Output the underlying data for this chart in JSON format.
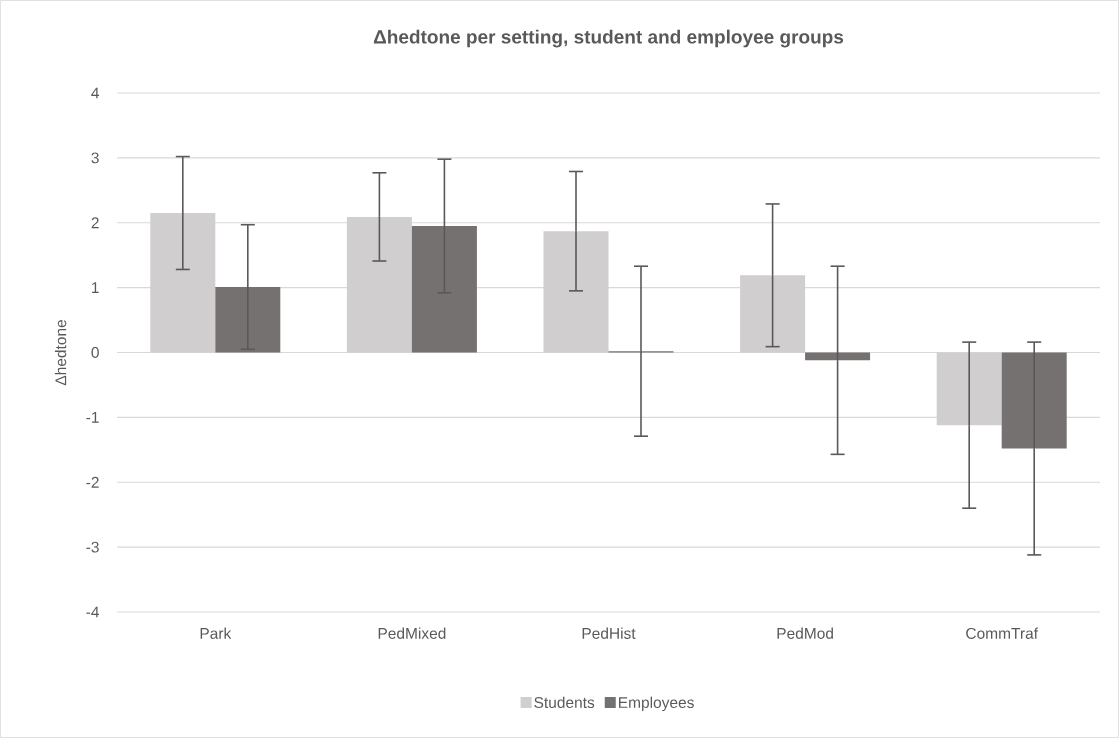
{
  "chart_data": {
    "type": "bar",
    "title": "Δhedtone per setting, student and employee groups",
    "ylabel": "Δhedtone",
    "categories": [
      "Park",
      "PedMixed",
      "PedHist",
      "PedMod",
      "CommTraf"
    ],
    "series": [
      {
        "name": "Students",
        "color": "#d0cece",
        "values": [
          2.15,
          2.09,
          1.87,
          1.19,
          -1.12
        ],
        "errors": [
          0.87,
          0.68,
          0.92,
          1.1,
          1.28
        ]
      },
      {
        "name": "Employees",
        "color": "#767171",
        "values": [
          1.01,
          1.95,
          0.02,
          -0.12,
          -1.48
        ],
        "errors": [
          0.96,
          1.03,
          1.31,
          1.45,
          1.64
        ]
      }
    ],
    "ylim": [
      -4,
      4
    ],
    "yticks": [
      -4,
      -3,
      -2,
      -1,
      0,
      1,
      2,
      3,
      4
    ],
    "grid": "y",
    "legend": "bottom"
  }
}
